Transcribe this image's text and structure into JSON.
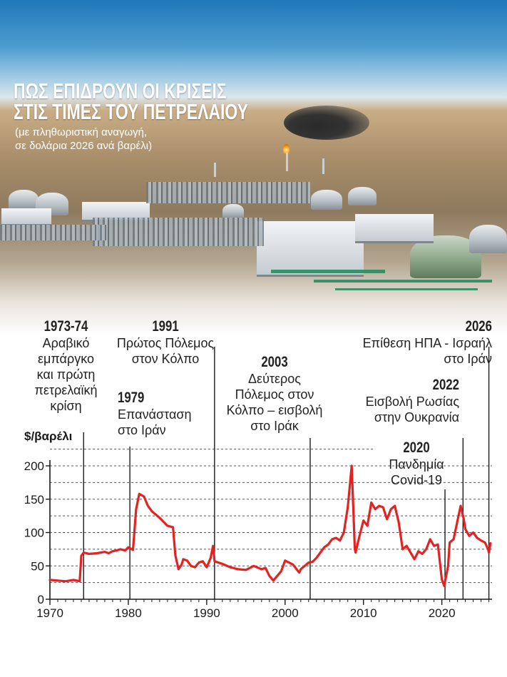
{
  "header": {
    "title_line1": "ΠΩΣ ΕΠΙΔΡΟΥΝ ΟΙ ΚΡΙΣΕΙΣ",
    "title_line2": "ΣΤΙΣ ΤΙΜΕΣ ΤΟΥ ΠΕΤΡΕΛΑΙΟΥ",
    "subtitle_line1": "(με πληθωριστική αναγωγή,",
    "subtitle_line2": "σε δολάρια 2026 ανά βαρέλι)"
  },
  "colors": {
    "line": "#e32222",
    "axis": "#1a1a1a",
    "grid": "#555555",
    "title": "#ffffff",
    "sky": "#1f78b8"
  },
  "chart_data": {
    "type": "line",
    "ylabel": "$/βαρέλι",
    "xlim": [
      1970,
      2026.4
    ],
    "ylim": [
      0,
      200
    ],
    "y_ticks": [
      "0",
      "50",
      "100",
      "150",
      "200"
    ],
    "x_ticks": [
      "1970",
      "1980",
      "1990",
      "2000",
      "2010",
      "2020"
    ],
    "gridlines": "dashed",
    "series": [
      {
        "x": [
          1970,
          1971,
          1972,
          1973,
          1973.8,
          1974,
          1974.3,
          1975,
          1976,
          1977,
          1977.5,
          1978,
          1978.5,
          1979,
          1979.6,
          1980,
          1980.6,
          1981,
          1981.4,
          1982,
          1982.5,
          1983,
          1984,
          1985,
          1985.7,
          1986,
          1986.4,
          1986.8,
          1987,
          1987.5,
          1988,
          1988.5,
          1989,
          1989.5,
          1990,
          1990.5,
          1990.8,
          1991,
          1991.5,
          1992,
          1993,
          1994,
          1995,
          1996,
          1997,
          1997.5,
          1998,
          1998.5,
          1999,
          1999.5,
          2000,
          2000.5,
          2001,
          2001.8,
          2002,
          2002.5,
          2003,
          2003.5,
          2004,
          2004.5,
          2005,
          2005.5,
          2006,
          2006.5,
          2007,
          2007.5,
          2008,
          2008.5,
          2008.9,
          2009,
          2009.5,
          2010,
          2010.5,
          2011,
          2011.5,
          2012,
          2012.5,
          2013,
          2013.5,
          2014,
          2014.5,
          2015,
          2015.5,
          2016,
          2016.5,
          2017,
          2017.5,
          2018,
          2018.5,
          2019,
          2019.5,
          2020,
          2020.3,
          2020.8,
          2021,
          2021.5,
          2022,
          2022.4,
          2022.8,
          2023,
          2023.5,
          2024,
          2024.5,
          2025,
          2025.5,
          2025.9,
          2026,
          2026.2
        ],
        "values": [
          29,
          28,
          27,
          29,
          27,
          65,
          70,
          68,
          69,
          71,
          69,
          72,
          73,
          75,
          73,
          78,
          74,
          135,
          158,
          154,
          140,
          132,
          122,
          110,
          108,
          66,
          45,
          52,
          60,
          58,
          50,
          48,
          55,
          57,
          48,
          62,
          80,
          57,
          55,
          53,
          48,
          45,
          44,
          50,
          45,
          47,
          35,
          28,
          35,
          42,
          58,
          55,
          52,
          40,
          45,
          50,
          55,
          56,
          62,
          70,
          78,
          82,
          90,
          92,
          88,
          100,
          138,
          200,
          75,
          70,
          95,
          118,
          110,
          145,
          135,
          140,
          138,
          120,
          135,
          140,
          115,
          75,
          80,
          70,
          60,
          72,
          68,
          75,
          90,
          80,
          82,
          30,
          20,
          50,
          85,
          90,
          118,
          140,
          120,
          105,
          95,
          100,
          92,
          88,
          85,
          75,
          70,
          84
        ]
      }
    ]
  },
  "events": [
    {
      "year": "1973-74",
      "lines": [
        "Αραβικό",
        "εμπάργκο",
        "και πρώτη",
        "πετρελαϊκή",
        "κρίση"
      ]
    },
    {
      "year": "1979",
      "lines": [
        "Επανάσταση",
        "στο Ιράν"
      ]
    },
    {
      "year": "1991",
      "lines": [
        "Πρώτος Πόλεμος",
        "στον Κόλπο"
      ]
    },
    {
      "year": "2003",
      "lines": [
        "Δεύτερος",
        "Πόλεμος στον",
        "Κόλπο – εισβολή",
        "στο Ιράκ"
      ]
    },
    {
      "year": "2020",
      "lines": [
        "Πανδημία",
        "Covid-19"
      ]
    },
    {
      "year": "2022",
      "lines": [
        "Εισβολή Ρωσίας",
        "στην Ουκρανία"
      ]
    },
    {
      "year": "2026",
      "lines": [
        "Επίθεση ΗΠΑ - Ισραήλ",
        "στο Ιράν"
      ]
    }
  ]
}
